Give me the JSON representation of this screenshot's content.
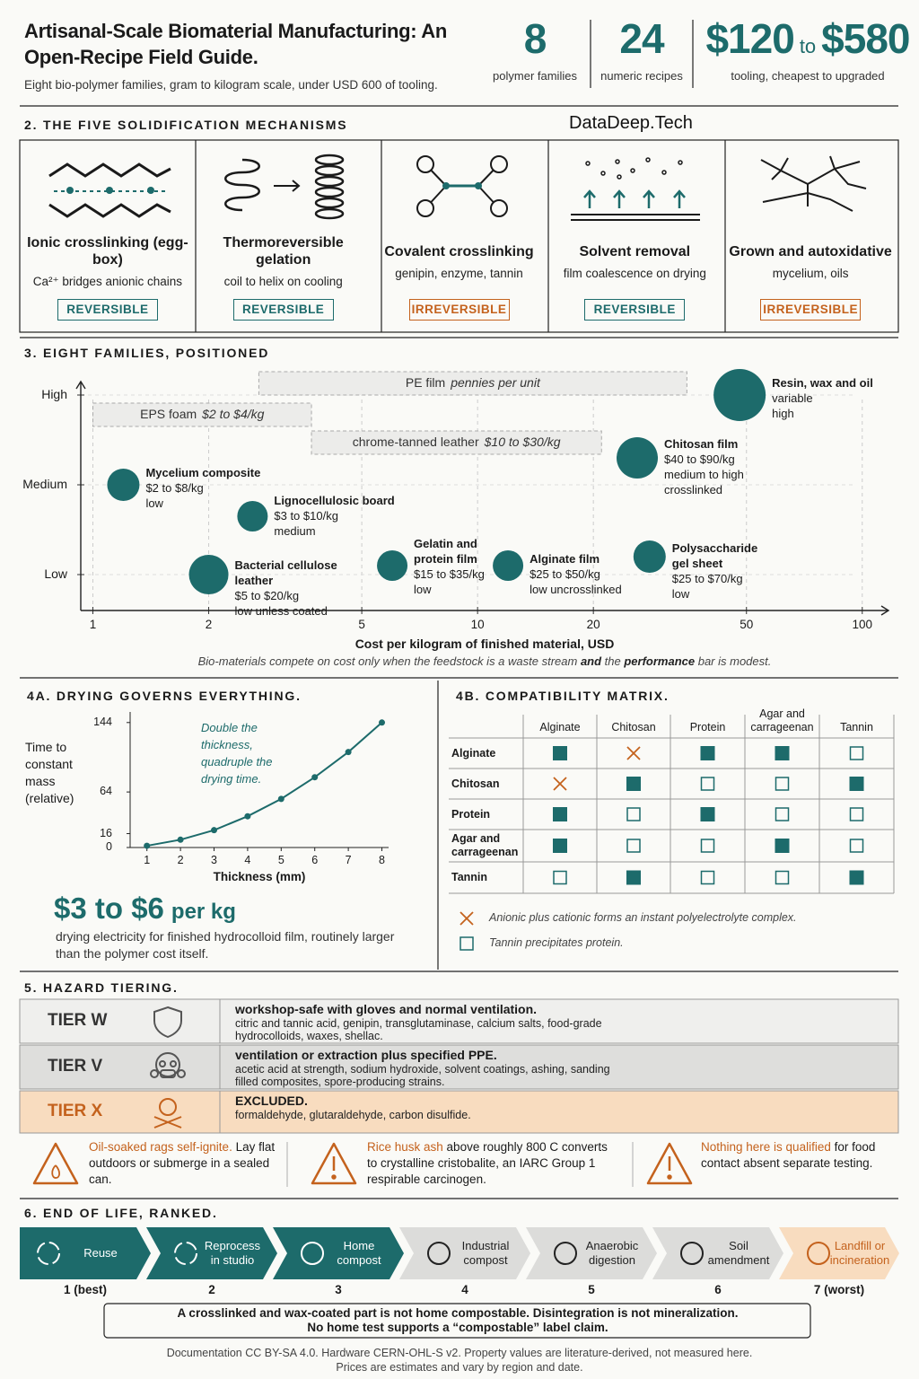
{
  "header": {
    "title": "Artisanal-Scale Biomaterial Manufacturing: An Open-Recipe Field Guide.",
    "subtitle": "Eight bio-polymer families, gram to kilogram scale, under USD 600 of tooling.",
    "stats": [
      {
        "value": "8",
        "label": "polymer families"
      },
      {
        "value": "24",
        "label": "numeric recipes"
      },
      {
        "value": "$120",
        "joiner": "to",
        "value_end": "$580",
        "label": "tooling, cheapest to upgraded"
      }
    ]
  },
  "watermark": "DataDeep.Tech",
  "mechanisms": {
    "title": "2. THE FIVE SOLIDIFICATION MECHANISMS",
    "items": [
      {
        "name": "Ionic crosslinking (egg-box)",
        "desc": "Ca²⁺ bridges anionic chains",
        "tag": "REVERSIBLE",
        "color": "#1d6b6b"
      },
      {
        "name": "Thermoreversible gelation",
        "desc": "coil to helix on cooling",
        "tag": "REVERSIBLE",
        "color": "#1d6b6b"
      },
      {
        "name": "Covalent crosslinking",
        "desc": "genipin, enzyme, tannin",
        "tag": "IRREVERSIBLE",
        "color": "#c4621d"
      },
      {
        "name": "Solvent removal",
        "desc": "film coalescence on drying",
        "tag": "REVERSIBLE",
        "color": "#1d6b6b"
      },
      {
        "name": "Grown and autoxidative",
        "desc": "mycelium, oils",
        "tag": "IRREVERSIBLE",
        "color": "#c4621d"
      }
    ]
  },
  "chart_data": [
    {
      "type": "scatter",
      "title": "3. EIGHT FAMILIES, POSITIONED",
      "x_label": "Cost per kilogram of finished material, USD",
      "xscale": "log",
      "xlim": [
        0.93,
        117
      ],
      "xticks": [
        1,
        2,
        5,
        10,
        20,
        50,
        100
      ],
      "ylim": [
        0.6,
        3.15
      ],
      "yticks": [
        {
          "value": 1,
          "label": "Low"
        },
        {
          "value": 2,
          "label": "Medium"
        },
        {
          "value": 3,
          "label": "High"
        }
      ],
      "grid": true,
      "color": "#1d6b6b",
      "points": [
        {
          "name": "Mycelium composite",
          "price": "$2 to $8/kg",
          "note": "low"
        },
        {
          "name": "Lignocellulosic board",
          "price": "$3 to $10/kg",
          "note": "medium"
        },
        {
          "name": "Bacterial cellulose leather",
          "price": "$5 to $20/kg",
          "note": "low unless coated"
        },
        {
          "name": "Gelatin and protein film",
          "price": "$15 to $35/kg",
          "note": "low"
        },
        {
          "name": "Alginate film",
          "price": "$25 to $50/kg",
          "note": "low uncrosslinked"
        },
        {
          "name": "Polysaccharide gel sheet",
          "price": "$25 to $70/kg",
          "note": "low"
        },
        {
          "name": "Chitosan film",
          "price": "$40 to $90/kg",
          "note": "medium to high crosslinked"
        },
        {
          "name": "Resin, wax and oil",
          "price": "variable",
          "note": "high"
        }
      ],
      "x": [
        1.2,
        2.6,
        2,
        6,
        12,
        28,
        26,
        48
      ],
      "y": [
        2,
        1.65,
        1,
        1.1,
        1.1,
        1.2,
        2.3,
        3
      ],
      "sizes": [
        18,
        17,
        22,
        17,
        17,
        18,
        23,
        29
      ],
      "references": [
        {
          "name": "PE film",
          "note": "pennies per unit",
          "x": [
            2.7,
            35
          ],
          "y": 3.13
        },
        {
          "name": "EPS foam",
          "note": "$2 to $4/kg",
          "x": [
            1,
            3.7
          ],
          "y": 2.78
        },
        {
          "name": "chrome-tanned leather",
          "note": "$10 to $30/kg",
          "x": [
            3.7,
            21
          ],
          "y": 2.47
        }
      ],
      "caption": [
        "Bio-materials compete on cost only when the feedstock is a waste stream ",
        "and",
        " the ",
        "performance",
        " bar is modest."
      ]
    },
    {
      "type": "line",
      "title": "4A. DRYING GOVERNS EVERYTHING.",
      "y_label": "Time to constant mass (relative)",
      "x_label": "Thickness (mm)",
      "annotation": "Double the thickness, quadruple the drying time.",
      "x": [
        1,
        2,
        3,
        4,
        5,
        6,
        7,
        8
      ],
      "values": [
        2,
        9,
        20,
        36,
        56,
        81,
        110,
        144
      ],
      "color": "#1d6b6b",
      "xlim": [
        0.5,
        8.2
      ],
      "ylim": [
        0,
        150
      ],
      "xticks": [
        1,
        2,
        3,
        4,
        5,
        6,
        7,
        8
      ],
      "yticks": [
        0,
        16,
        64,
        144
      ]
    }
  ],
  "drying_cost": {
    "value": "$3 to $6",
    "unit": "per kg",
    "text": "drying electricity for finished hydrocolloid film, routinely larger than the polymer cost itself."
  },
  "compatibility": {
    "title": "4B. COMPATIBILITY MATRIX.",
    "columns": [
      "Alginate",
      "Chitosan",
      "Protein",
      "Agar and carrageenan",
      "Tannin"
    ],
    "rows": [
      "Alginate",
      "Chitosan",
      "Protein",
      "Agar and carrageenan",
      "Tannin"
    ],
    "cells": [
      [
        "filled",
        "cross",
        "filled",
        "filled",
        "open"
      ],
      [
        "cross",
        "filled",
        "open",
        "open",
        "filled"
      ],
      [
        "filled",
        "open",
        "filled",
        "open",
        "open"
      ],
      [
        "filled",
        "open",
        "open",
        "filled",
        "open"
      ],
      [
        "open",
        "filled",
        "open",
        "open",
        "filled"
      ]
    ],
    "legend": [
      {
        "symbol": "cross",
        "text": "Anionic plus cationic forms an instant polyelectrolyte complex."
      },
      {
        "symbol": "open",
        "text": "Tannin precipitates protein."
      }
    ]
  },
  "hazards": {
    "title": "5. HAZARD TIERING.",
    "tiers": [
      {
        "name": "TIER W",
        "head": "workshop-safe with gloves and normal ventilation.",
        "body": "citric and tannic acid, genipin, transglutaminase, calcium salts, food-grade hydrocolloids, waxes, shellac.",
        "color": "#efefed",
        "text_color": "#333333"
      },
      {
        "name": "TIER V",
        "head": "ventilation or extraction plus specified PPE.",
        "body": "acetic acid at strength, sodium hydroxide, solvent coatings, ashing, sanding filled composites, spore-producing strains.",
        "color": "#dededc",
        "text_color": "#333333"
      },
      {
        "name": "TIER X",
        "head": "EXCLUDED.",
        "body": "formaldehyde, glutaraldehyde, carbon disulfide.",
        "color": "#f8dcbf",
        "text_color": "#c4621d"
      }
    ],
    "warnings": [
      {
        "highlight": "Oil-soaked rags self-ignite.",
        "text": " Lay flat outdoors or submerge in a sealed can."
      },
      {
        "highlight": "Rice husk ash",
        "text": " above roughly 800 C converts to crystalline cristobalite, an IARC Group 1 respirable carcinogen."
      },
      {
        "highlight": "Nothing here is qualified",
        "text": " for food contact absent separate testing."
      }
    ]
  },
  "end_of_life": {
    "title": "6. END OF LIFE, RANKED.",
    "steps": [
      "Reuse",
      "Reprocess in studio",
      "Home compost",
      "Industrial compost",
      "Anaerobic digestion",
      "Soil amendment",
      "Landfill or incineration"
    ],
    "ranks": [
      "1 (best)",
      "2",
      "3",
      "4",
      "5",
      "6",
      "7 (worst)"
    ],
    "colors": [
      "#1d6b6b",
      "#1d6b6b",
      "#1d6b6b",
      "#dcdcda",
      "#dcdcda",
      "#dcdcda",
      "#f8dcbf"
    ],
    "text_colors": [
      "#ffffff",
      "#ffffff",
      "#ffffff",
      "#222222",
      "#222222",
      "#222222",
      "#c4621d"
    ],
    "note": [
      "A crosslinked and wax-coated part is not home compostable. Disintegration is not mineralization.",
      "No home test supports a “compostable” label claim."
    ]
  },
  "footer": [
    "Documentation CC BY-SA 4.0. Hardware CERN-OHL-S v2. Property values are literature-derived, not measured here.",
    "Prices are estimates and vary by region and date."
  ]
}
